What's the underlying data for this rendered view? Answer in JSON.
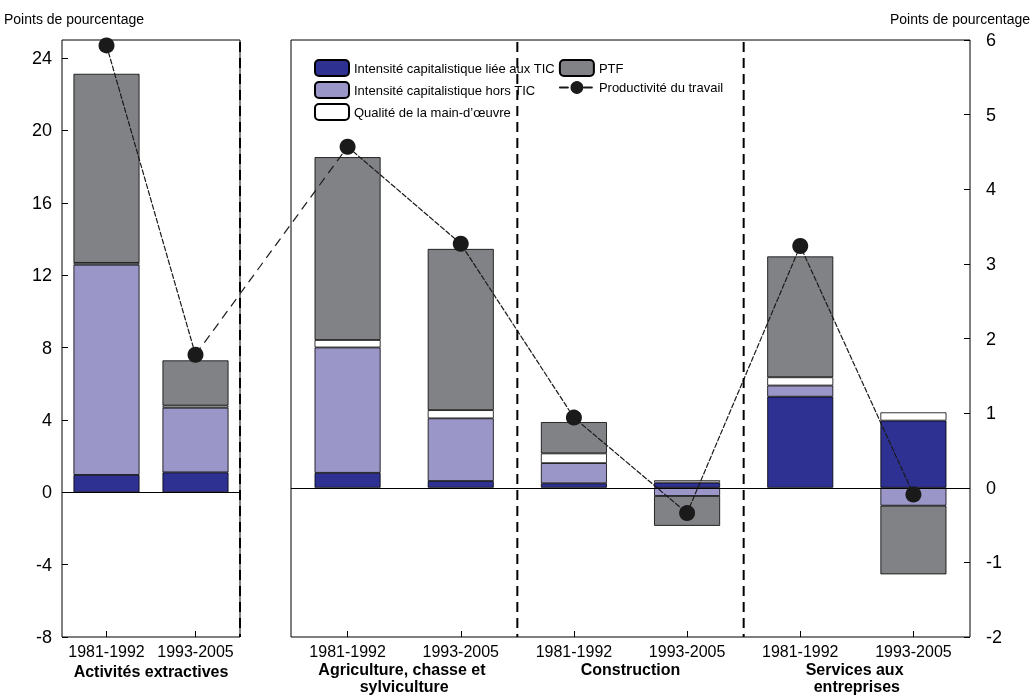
{
  "chart_data": [
    {
      "type": "bar",
      "stacked": true,
      "categories": [
        "1981-1992",
        "1993-2005"
      ],
      "xlabel": "Activités extractives",
      "ylabel": "Points de pourcentage",
      "ylim": [
        -8,
        25
      ],
      "yticks": [
        -8,
        -4,
        0,
        4,
        8,
        12,
        16,
        20,
        24
      ],
      "marker": "circle",
      "line_style": "dashed",
      "ref_lines": [
        {
          "axis": "y",
          "value": 0,
          "color": "#000000"
        }
      ],
      "series": [
        {
          "color": "#2e3192",
          "values": [
            0.96,
            1.1
          ]
        },
        {
          "color": "#9b96c8",
          "values": [
            11.62,
            3.57
          ]
        },
        {
          "color": "#ffffff",
          "values": [
            0.1,
            0.12
          ]
        },
        {
          "color": "#808285",
          "values": [
            10.45,
            2.5
          ]
        },
        {
          "type": "line",
          "color": "#1a1a1a",
          "values": [
            24.7,
            7.6
          ]
        }
      ]
    },
    {
      "type": "bar",
      "stacked": true,
      "categories": [
        "1981-1992",
        "1993-2005",
        "1981-1992",
        "1993-2005",
        "1981-1992",
        "1993-2005"
      ],
      "annotations": [
        "Agriculture, chasse et sylviculture",
        "Construction",
        "Services aux entreprises"
      ],
      "y2label": "Points de pourcentage",
      "y2lim": [
        -2,
        6
      ],
      "y2ticks": [
        -2,
        -1,
        0,
        1,
        2,
        3,
        4,
        5,
        6
      ],
      "legend": "top left",
      "marker": "circle",
      "line_style": "dashed",
      "ref_lines": [
        {
          "axis": "y2",
          "value": 0,
          "color": "#000000"
        }
      ],
      "series": [
        {
          "name": "Intensité capitalistique liée aux TIC",
          "axis": "y2",
          "color": "#2e3192",
          "values": [
            0.2,
            0.09,
            0.06,
            0.07,
            1.22,
            0.9
          ]
        },
        {
          "name": "Intensité capitalistique hors TIC",
          "axis": "y2",
          "color": "#9b96c8",
          "values": [
            1.68,
            0.84,
            0.27,
            -0.11,
            0.15,
            -0.24
          ]
        },
        {
          "name": "Qualité de la main-d’œuvre",
          "axis": "y2",
          "color": "#ffffff",
          "values": [
            0.1,
            0.11,
            0.13,
            0.03,
            0.11,
            0.11
          ]
        },
        {
          "name": "PTF",
          "axis": "y2",
          "color": "#808285",
          "values": [
            2.45,
            2.16,
            0.42,
            -0.4,
            1.62,
            -0.92
          ]
        },
        {
          "name": "Productivité du travail",
          "axis": "y2",
          "type": "line",
          "color": "#1a1a1a",
          "values": [
            4.57,
            3.27,
            0.94,
            -0.34,
            3.24,
            -0.09
          ]
        }
      ]
    }
  ]
}
